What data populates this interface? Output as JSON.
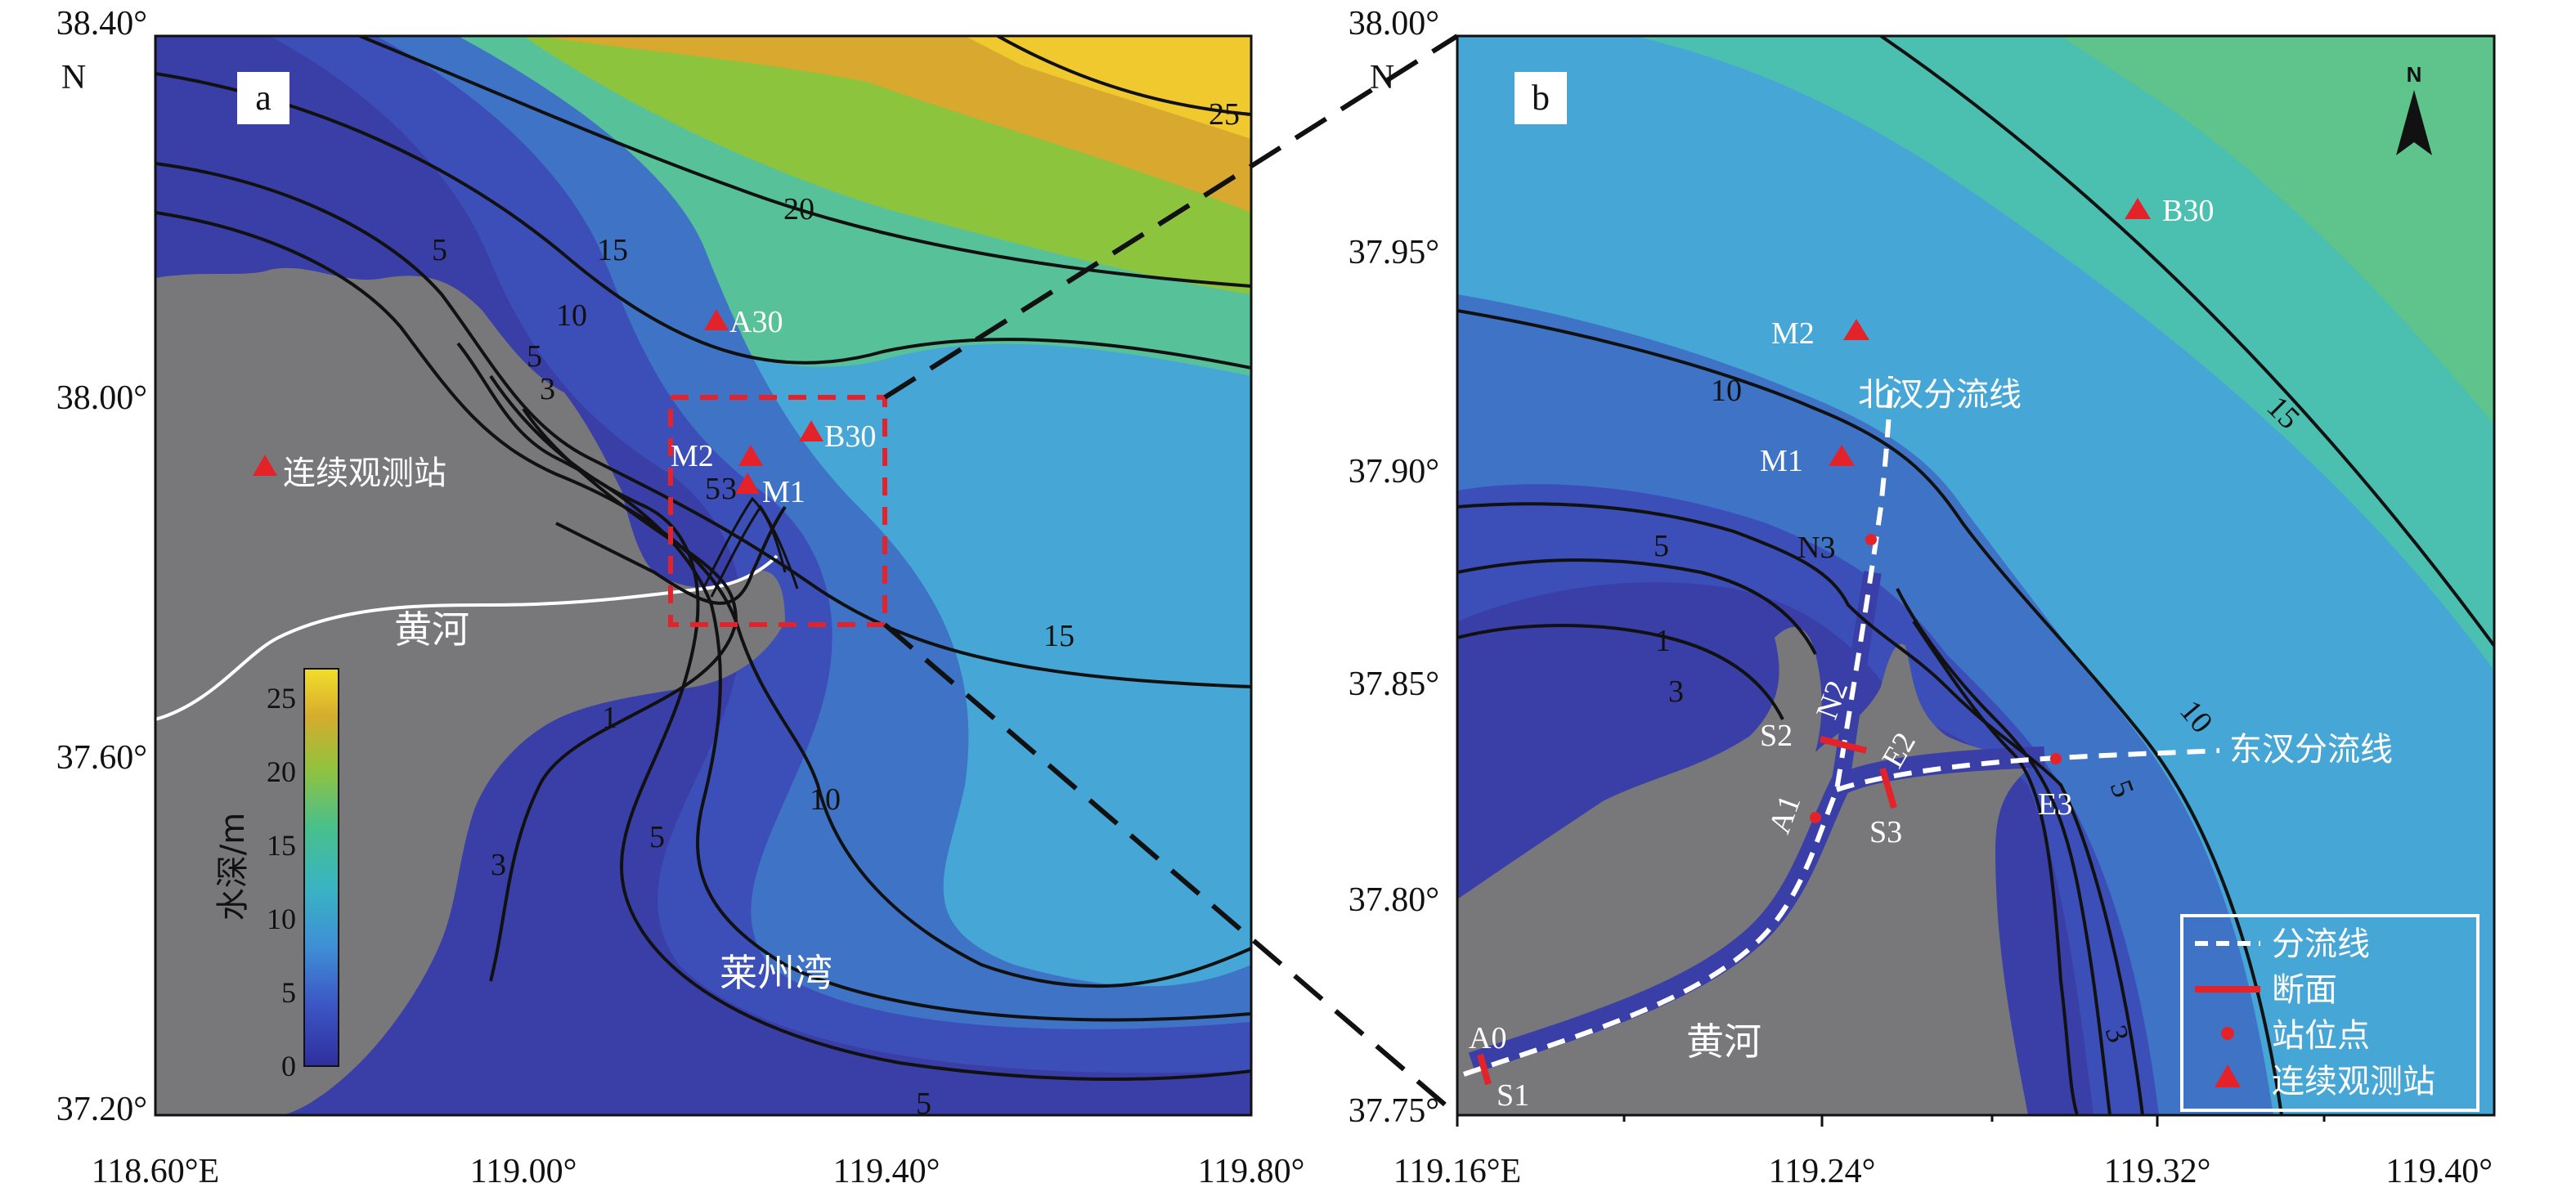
{
  "panel_a": {
    "tag": "a",
    "lat_ticks": [
      "38.40°",
      "38.00°",
      "37.60°",
      "37.20°"
    ],
    "lat_north": "N",
    "lon_ticks": [
      "118.60°E",
      "119.00°",
      "119.40°",
      "119.80°"
    ],
    "places": {
      "station": "连续观测站",
      "river": "黄河",
      "bay": "莱州湾"
    },
    "stations": [
      "A30",
      "M2",
      "M1",
      "B30"
    ],
    "contour_labels": [
      "5",
      "10",
      "15",
      "20",
      "25",
      "5",
      "3",
      "5",
      "3",
      "1",
      "3",
      "5",
      "10",
      "15",
      "5"
    ],
    "colorbar": {
      "title": "水深/m",
      "ticks": [
        "25",
        "20",
        "15",
        "10",
        "5",
        "0"
      ],
      "range": [
        0,
        27
      ]
    }
  },
  "panel_b": {
    "tag": "b",
    "lat_ticks": [
      "38.00°",
      "37.95°",
      "37.90°",
      "37.85°",
      "37.80°",
      "37.75°"
    ],
    "lat_north": "N",
    "lon_ticks": [
      "119.16°E",
      "119.24°",
      "119.32°",
      "119.40°"
    ],
    "north_arrow": "N",
    "stations": [
      "B30",
      "M2",
      "M1"
    ],
    "lines": {
      "north": "北汊分流线",
      "east": "东汊分流线"
    },
    "river": "黄河",
    "points": [
      "N3",
      "N2",
      "S2",
      "E2",
      "A1",
      "S3",
      "E3",
      "A0",
      "S1"
    ],
    "contour_labels": [
      "10",
      "15",
      "5",
      "1",
      "3",
      "10",
      "5",
      "3"
    ],
    "legend": [
      {
        "label": "分流线",
        "symbol": "white-dashed-line"
      },
      {
        "label": "断面",
        "symbol": "red-solid-line"
      },
      {
        "label": "站位点",
        "symbol": "red-dot"
      },
      {
        "label": "连续观测站",
        "symbol": "red-triangle"
      }
    ]
  },
  "colors": {
    "land": "#7a7a7c",
    "deep_blue": "#3b3fa6",
    "station": "#e3222a",
    "contour": "#111111"
  }
}
